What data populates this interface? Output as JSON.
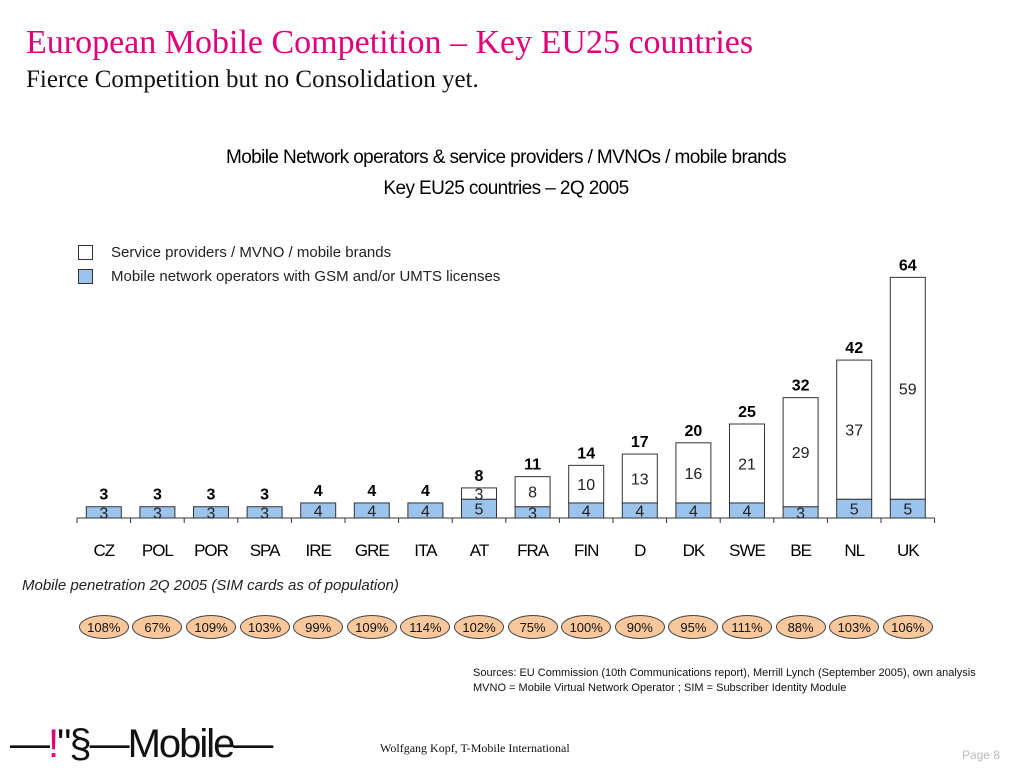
{
  "slide": {
    "title": "European Mobile Competition – Key EU25 countries",
    "subtitle": "Fierce Competition but no Consolidation yet."
  },
  "chart_data": {
    "type": "bar",
    "stacked": true,
    "title_line1": "Mobile Network operators & service providers / MVNOs / mobile brands",
    "title_line2": "Key EU25 countries – 2Q 2005",
    "categories": [
      "CZ",
      "POL",
      "POR",
      "SPA",
      "IRE",
      "GRE",
      "ITA",
      "AT",
      "FRA",
      "FIN",
      "D",
      "DK",
      "SWE",
      "BE",
      "NL",
      "UK"
    ],
    "series": [
      {
        "name": "Mobile network operators with GSM and/or UMTS licenses",
        "values": [
          3,
          3,
          3,
          3,
          4,
          4,
          4,
          5,
          3,
          4,
          4,
          4,
          4,
          3,
          5,
          5
        ],
        "color": "#9cc3ec"
      },
      {
        "name": "Service providers / MVNO / mobile brands",
        "values": [
          0,
          0,
          0,
          0,
          0,
          0,
          0,
          3,
          8,
          10,
          13,
          16,
          21,
          29,
          37,
          59
        ],
        "color": "#ffffff"
      }
    ],
    "series_labels": [
      [
        "3",
        "3",
        "3",
        "3",
        "4",
        "4",
        "4",
        "5",
        "3",
        "4",
        "4",
        "4",
        "4",
        "3",
        "5",
        "5"
      ],
      [
        "",
        "",
        "",
        "",
        "",
        "",
        "",
        "3",
        "8",
        "10",
        "13",
        "16",
        "21",
        "29",
        "37",
        "59"
      ]
    ],
    "totals": [
      "3",
      "3",
      "3",
      "3",
      "4",
      "4",
      "4",
      "8",
      "11",
      "14",
      "17",
      "20",
      "25",
      "32",
      "42",
      "64"
    ],
    "legend_placement": "top-left",
    "grid": false
  },
  "penetration": {
    "title": "Mobile penetration 2Q 2005 (SIM cards as of population)",
    "values": [
      "108%",
      "67%",
      "109%",
      "103%",
      "99%",
      "109%",
      "114%",
      "102%",
      "75%",
      "100%",
      "90%",
      "95%",
      "111%",
      "88%",
      "103%",
      "106%"
    ]
  },
  "notes": {
    "sources": "Sources: EU Commission (10th Communications report), Merrill Lynch (September 2005), own analysis",
    "definitions": "MVNO = Mobile Virtual Network Operator ; SIM = Subscriber Identity Module"
  },
  "footer": {
    "logo_part1": "—",
    "logo_part2": "!",
    "logo_part3": "\"§—Mobile—",
    "author": "Wolfgang Kopf, T-Mobile International",
    "page": "Page 8"
  },
  "colors": {
    "accent": "#e2007a",
    "operator_fill": "#9cc3ec",
    "oval_fill": "#f8c89c"
  }
}
